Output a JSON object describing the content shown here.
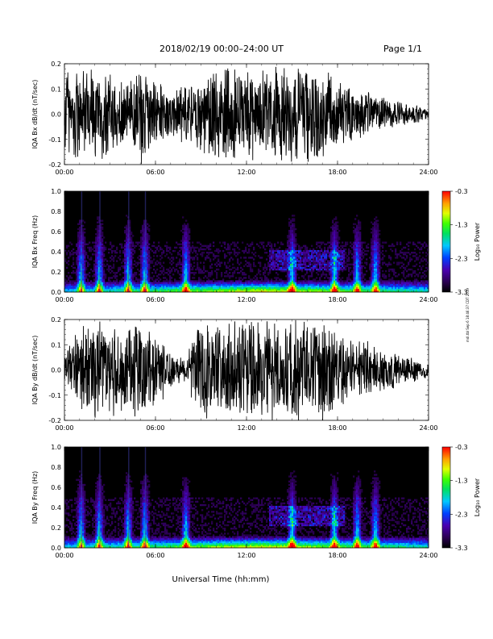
{
  "header": {
    "title": "2018/02/19   00:00–24:00 UT",
    "page": "Page 1/1"
  },
  "side_note": "mdl.tbl  Sep 6 18:46:37 CDT 2019",
  "x_axis_label": "Universal Time (hh:mm)",
  "chart_data": [
    {
      "type": "line",
      "id": "bx-waveform",
      "ylabel": "IQA Bx dB/dt (nT/sec)",
      "xlim": [
        0,
        24
      ],
      "ylim": [
        -0.2,
        0.2
      ],
      "x_ticks": [
        "00:00",
        "06:00",
        "12:00",
        "18:00",
        "24:00"
      ],
      "y_ticks": [
        "0.2",
        "0.1",
        "0.0",
        "-0.1",
        "-0.2"
      ],
      "series": [
        {
          "color": "#000000",
          "x": [
            0,
            1,
            2,
            3,
            4,
            5,
            6,
            7,
            8,
            9,
            10,
            11,
            12,
            13,
            14,
            15,
            16,
            17,
            18,
            19,
            20,
            21,
            22,
            23,
            24
          ],
          "amplitude": [
            0.2,
            0.2,
            0.2,
            0.17,
            0.14,
            0.2,
            0.14,
            0.1,
            0.12,
            0.15,
            0.2,
            0.2,
            0.2,
            0.18,
            0.2,
            0.2,
            0.2,
            0.2,
            0.14,
            0.11,
            0.09,
            0.07,
            0.05,
            0.04,
            0.025
          ]
        }
      ]
    },
    {
      "type": "heatmap",
      "id": "bx-spectrogram",
      "ylabel": "IQA Bx Freq (Hz)",
      "xlim": [
        0,
        24
      ],
      "ylim": [
        0.0,
        1.0
      ],
      "x_ticks": [
        "00:00",
        "06:00",
        "12:00",
        "18:00",
        "24:00"
      ],
      "y_ticks": [
        "1.0",
        "0.8",
        "0.6",
        "0.4",
        "0.2",
        "0.0"
      ],
      "colorbar": {
        "label": "Log₁₀ Power",
        "range": [
          -3.3,
          -0.3
        ],
        "ticks": [
          "-0.3",
          "-1.3",
          "-2.3",
          "-3.3"
        ]
      },
      "event_times_hr": [
        1.1,
        2.3,
        4.2,
        5.3,
        8.0,
        15.0,
        17.8,
        19.3,
        20.5
      ],
      "floor_band_hz": 0.05
    },
    {
      "type": "line",
      "id": "by-waveform",
      "ylabel": "IQA By dB/dt (nT/sec)",
      "xlim": [
        0,
        24
      ],
      "ylim": [
        -0.2,
        0.2
      ],
      "x_ticks": [
        "00:00",
        "06:00",
        "12:00",
        "18:00",
        "24:00"
      ],
      "y_ticks": [
        "0.2",
        "0.1",
        "0.0",
        "-0.1",
        "-0.2"
      ],
      "series": [
        {
          "color": "#000000",
          "x": [
            0,
            1,
            2,
            3,
            4,
            5,
            6,
            7,
            8,
            9,
            10,
            11,
            12,
            13,
            14,
            15,
            16,
            17,
            18,
            19,
            20,
            21,
            22,
            23,
            24
          ],
          "amplitude": [
            0.06,
            0.2,
            0.2,
            0.2,
            0.2,
            0.2,
            0.16,
            0.08,
            0.05,
            0.2,
            0.2,
            0.2,
            0.2,
            0.2,
            0.2,
            0.2,
            0.2,
            0.2,
            0.16,
            0.13,
            0.11,
            0.09,
            0.07,
            0.05,
            0.03
          ]
        }
      ]
    },
    {
      "type": "heatmap",
      "id": "by-spectrogram",
      "ylabel": "IQA By Freq (Hz)",
      "xlim": [
        0,
        24
      ],
      "ylim": [
        0.0,
        1.0
      ],
      "x_ticks": [
        "00:00",
        "06:00",
        "12:00",
        "18:00",
        "24:00"
      ],
      "y_ticks": [
        "1.0",
        "0.8",
        "0.6",
        "0.4",
        "0.2",
        "0.0"
      ],
      "colorbar": {
        "label": "Log₁₀ Power",
        "range": [
          -3.3,
          -0.3
        ],
        "ticks": [
          "-0.3",
          "-1.3",
          "-2.3",
          "-3.3"
        ]
      },
      "event_times_hr": [
        1.1,
        2.3,
        4.2,
        5.3,
        8.0,
        15.0,
        17.8,
        19.3,
        20.5
      ],
      "floor_band_hz": 0.05
    }
  ],
  "colors": {
    "background": "#ffffff",
    "axis": "#000000",
    "spectrogram_background": "#000000"
  }
}
